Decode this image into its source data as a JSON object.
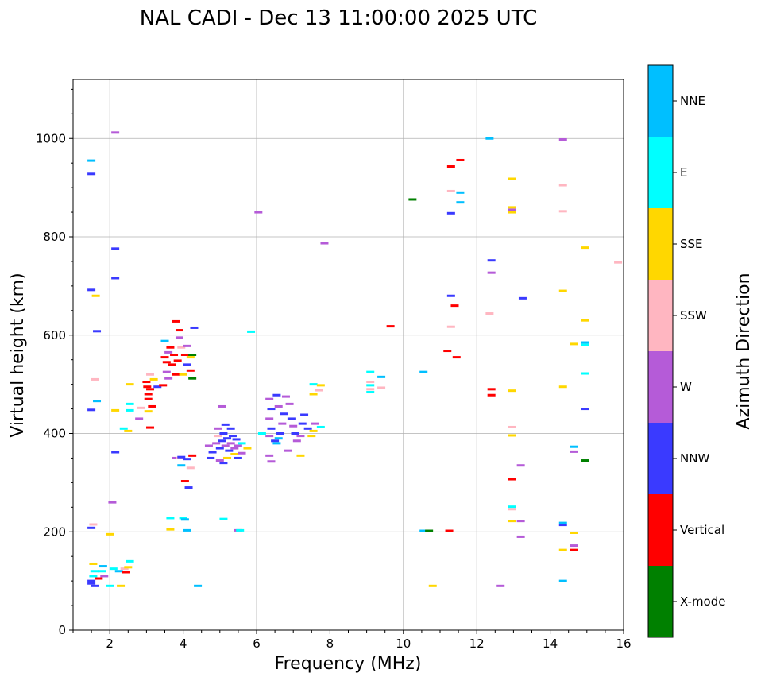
{
  "chart_data": {
    "type": "scatter",
    "title": "NAL CADI - Dec 13 11:00:00 2025 UTC",
    "xlabel": "Frequency (MHz)",
    "ylabel": "Virtual height (km)",
    "xlim": [
      1.0,
      16.0
    ],
    "ylim": [
      0,
      1120
    ],
    "xticks": [
      2,
      4,
      6,
      8,
      10,
      12,
      14,
      16
    ],
    "yticks": [
      0,
      200,
      400,
      600,
      800,
      1000
    ],
    "grid": true,
    "colorbar": {
      "label": "Azimuth Direction",
      "categories": [
        {
          "name": "X-mode",
          "color": "#008000"
        },
        {
          "name": "Vertical",
          "color": "#ff0000"
        },
        {
          "name": "NNW",
          "color": "#3a3aff"
        },
        {
          "name": "W",
          "color": "#b55bd8"
        },
        {
          "name": "SSW",
          "color": "#ffb6c1"
        },
        {
          "name": "SSE",
          "color": "#ffd700"
        },
        {
          "name": "E",
          "color": "#00ffff"
        },
        {
          "name": "NNE",
          "color": "#00bfff"
        }
      ]
    },
    "points": [
      {
        "f": 1.5,
        "h": 955,
        "c": "NNE"
      },
      {
        "f": 1.5,
        "h": 928,
        "c": "NNW"
      },
      {
        "f": 1.5,
        "h": 692,
        "c": "NNW"
      },
      {
        "f": 1.65,
        "h": 608,
        "c": "NNW"
      },
      {
        "f": 1.62,
        "h": 680,
        "c": "SSE"
      },
      {
        "f": 1.5,
        "h": 448,
        "c": "NNW"
      },
      {
        "f": 1.6,
        "h": 510,
        "c": "SSW"
      },
      {
        "f": 1.65,
        "h": 466,
        "c": "NNE"
      },
      {
        "f": 1.5,
        "h": 208,
        "c": "NNW"
      },
      {
        "f": 1.55,
        "h": 215,
        "c": "SSW"
      },
      {
        "f": 1.5,
        "h": 100,
        "c": "NNW"
      },
      {
        "f": 1.5,
        "h": 95,
        "c": "NNW"
      },
      {
        "f": 1.55,
        "h": 110,
        "c": "E"
      },
      {
        "f": 1.58,
        "h": 120,
        "c": "E"
      },
      {
        "f": 1.6,
        "h": 90,
        "c": "NNW"
      },
      {
        "f": 1.55,
        "h": 135,
        "c": "SSE"
      },
      {
        "f": 1.7,
        "h": 105,
        "c": "Vertical"
      },
      {
        "f": 1.78,
        "h": 120,
        "c": "E"
      },
      {
        "f": 1.85,
        "h": 110,
        "c": "W"
      },
      {
        "f": 1.82,
        "h": 130,
        "c": "NNE"
      },
      {
        "f": 2.1,
        "h": 125,
        "c": "E"
      },
      {
        "f": 2.25,
        "h": 120,
        "c": "NNE"
      },
      {
        "f": 2.4,
        "h": 125,
        "c": "SSW"
      },
      {
        "f": 2.5,
        "h": 128,
        "c": "SSE"
      },
      {
        "f": 2.45,
        "h": 118,
        "c": "Vertical"
      },
      {
        "f": 2.55,
        "h": 140,
        "c": "E"
      },
      {
        "f": 2.3,
        "h": 90,
        "c": "SSE"
      },
      {
        "f": 2.0,
        "h": 90,
        "c": "E"
      },
      {
        "f": 2.0,
        "h": 195,
        "c": "SSE"
      },
      {
        "f": 2.07,
        "h": 260,
        "c": "W"
      },
      {
        "f": 2.15,
        "h": 1012,
        "c": "W"
      },
      {
        "f": 2.15,
        "h": 776,
        "c": "NNW"
      },
      {
        "f": 2.15,
        "h": 716,
        "c": "NNW"
      },
      {
        "f": 2.15,
        "h": 362,
        "c": "NNW"
      },
      {
        "f": 2.15,
        "h": 447,
        "c": "SSE"
      },
      {
        "f": 2.38,
        "h": 410,
        "c": "E"
      },
      {
        "f": 2.5,
        "h": 405,
        "c": "SSE"
      },
      {
        "f": 2.55,
        "h": 460,
        "c": "E"
      },
      {
        "f": 2.55,
        "h": 447,
        "c": "E"
      },
      {
        "f": 2.55,
        "h": 500,
        "c": "SSE"
      },
      {
        "f": 2.8,
        "h": 430,
        "c": "W"
      },
      {
        "f": 2.85,
        "h": 452,
        "c": "SSW"
      },
      {
        "f": 3.0,
        "h": 505,
        "c": "Vertical"
      },
      {
        "f": 3.05,
        "h": 480,
        "c": "Vertical"
      },
      {
        "f": 3.05,
        "h": 470,
        "c": "Vertical"
      },
      {
        "f": 3.1,
        "h": 490,
        "c": "Vertical"
      },
      {
        "f": 3.02,
        "h": 495,
        "c": "Vertical"
      },
      {
        "f": 3.1,
        "h": 520,
        "c": "SSW"
      },
      {
        "f": 3.15,
        "h": 455,
        "c": "Vertical"
      },
      {
        "f": 3.05,
        "h": 445,
        "c": "SSE"
      },
      {
        "f": 3.2,
        "h": 510,
        "c": "SSE"
      },
      {
        "f": 3.1,
        "h": 412,
        "c": "Vertical"
      },
      {
        "f": 3.3,
        "h": 495,
        "c": "NNW"
      },
      {
        "f": 3.45,
        "h": 498,
        "c": "Vertical"
      },
      {
        "f": 3.5,
        "h": 555,
        "c": "Vertical"
      },
      {
        "f": 3.55,
        "h": 545,
        "c": "Vertical"
      },
      {
        "f": 3.6,
        "h": 565,
        "c": "W"
      },
      {
        "f": 3.65,
        "h": 575,
        "c": "Vertical"
      },
      {
        "f": 3.7,
        "h": 540,
        "c": "Vertical"
      },
      {
        "f": 3.75,
        "h": 560,
        "c": "Vertical"
      },
      {
        "f": 3.55,
        "h": 525,
        "c": "W"
      },
      {
        "f": 3.6,
        "h": 512,
        "c": "W"
      },
      {
        "f": 3.8,
        "h": 520,
        "c": "Vertical"
      },
      {
        "f": 3.85,
        "h": 548,
        "c": "Vertical"
      },
      {
        "f": 3.9,
        "h": 595,
        "c": "W"
      },
      {
        "f": 3.8,
        "h": 628,
        "c": "Vertical"
      },
      {
        "f": 3.9,
        "h": 610,
        "c": "Vertical"
      },
      {
        "f": 3.5,
        "h": 588,
        "c": "NNE"
      },
      {
        "f": 3.95,
        "h": 575,
        "c": "SSW"
      },
      {
        "f": 4.05,
        "h": 560,
        "c": "Vertical"
      },
      {
        "f": 4.1,
        "h": 578,
        "c": "W"
      },
      {
        "f": 4.2,
        "h": 555,
        "c": "SSE"
      },
      {
        "f": 4.25,
        "h": 560,
        "c": "X-mode"
      },
      {
        "f": 4.1,
        "h": 540,
        "c": "NNW"
      },
      {
        "f": 4.2,
        "h": 528,
        "c": "Vertical"
      },
      {
        "f": 4.25,
        "h": 512,
        "c": "X-mode"
      },
      {
        "f": 4.0,
        "h": 520,
        "c": "SSE"
      },
      {
        "f": 4.3,
        "h": 615,
        "c": "NNW"
      },
      {
        "f": 3.8,
        "h": 350,
        "c": "W"
      },
      {
        "f": 3.9,
        "h": 350,
        "c": "SSW"
      },
      {
        "f": 3.95,
        "h": 352,
        "c": "NNW"
      },
      {
        "f": 3.95,
        "h": 335,
        "c": "NNE"
      },
      {
        "f": 4.1,
        "h": 348,
        "c": "NNW"
      },
      {
        "f": 4.2,
        "h": 330,
        "c": "SSW"
      },
      {
        "f": 4.25,
        "h": 355,
        "c": "Vertical"
      },
      {
        "f": 4.05,
        "h": 303,
        "c": "Vertical"
      },
      {
        "f": 4.15,
        "h": 290,
        "c": "NNW"
      },
      {
        "f": 3.65,
        "h": 228,
        "c": "E"
      },
      {
        "f": 4.0,
        "h": 228,
        "c": "E"
      },
      {
        "f": 4.05,
        "h": 225,
        "c": "NNE"
      },
      {
        "f": 3.65,
        "h": 205,
        "c": "SSE"
      },
      {
        "f": 4.1,
        "h": 203,
        "c": "NNE"
      },
      {
        "f": 4.4,
        "h": 90,
        "c": "NNE"
      },
      {
        "f": 4.7,
        "h": 375,
        "c": "W"
      },
      {
        "f": 4.75,
        "h": 350,
        "c": "NNW"
      },
      {
        "f": 4.8,
        "h": 362,
        "c": "NNW"
      },
      {
        "f": 4.9,
        "h": 380,
        "c": "W"
      },
      {
        "f": 4.95,
        "h": 395,
        "c": "SSW"
      },
      {
        "f": 5.0,
        "h": 370,
        "c": "NNW"
      },
      {
        "f": 5.05,
        "h": 385,
        "c": "NNW"
      },
      {
        "f": 5.1,
        "h": 400,
        "c": "NNW"
      },
      {
        "f": 5.15,
        "h": 375,
        "c": "W"
      },
      {
        "f": 5.2,
        "h": 390,
        "c": "NNW"
      },
      {
        "f": 5.25,
        "h": 365,
        "c": "NNW"
      },
      {
        "f": 5.3,
        "h": 380,
        "c": "W"
      },
      {
        "f": 5.35,
        "h": 395,
        "c": "NNW"
      },
      {
        "f": 5.4,
        "h": 370,
        "c": "W"
      },
      {
        "f": 5.45,
        "h": 388,
        "c": "NNW"
      },
      {
        "f": 5.5,
        "h": 375,
        "c": "W"
      },
      {
        "f": 5.2,
        "h": 350,
        "c": "SSE"
      },
      {
        "f": 5.0,
        "h": 345,
        "c": "W"
      },
      {
        "f": 5.1,
        "h": 340,
        "c": "NNW"
      },
      {
        "f": 5.3,
        "h": 410,
        "c": "NNW"
      },
      {
        "f": 5.15,
        "h": 418,
        "c": "NNW"
      },
      {
        "f": 4.95,
        "h": 410,
        "c": "W"
      },
      {
        "f": 5.4,
        "h": 358,
        "c": "SSE"
      },
      {
        "f": 5.5,
        "h": 350,
        "c": "NNW"
      },
      {
        "f": 5.6,
        "h": 360,
        "c": "W"
      },
      {
        "f": 5.05,
        "h": 455,
        "c": "W"
      },
      {
        "f": 5.75,
        "h": 370,
        "c": "SSE"
      },
      {
        "f": 5.6,
        "h": 380,
        "c": "E"
      },
      {
        "f": 5.1,
        "h": 226,
        "c": "E"
      },
      {
        "f": 5.5,
        "h": 203,
        "c": "W"
      },
      {
        "f": 5.55,
        "h": 203,
        "c": "E"
      },
      {
        "f": 5.85,
        "h": 607,
        "c": "E"
      },
      {
        "f": 6.05,
        "h": 850,
        "c": "W"
      },
      {
        "f": 6.35,
        "h": 470,
        "c": "W"
      },
      {
        "f": 6.4,
        "h": 450,
        "c": "NNW"
      },
      {
        "f": 6.35,
        "h": 430,
        "c": "W"
      },
      {
        "f": 6.4,
        "h": 410,
        "c": "NNW"
      },
      {
        "f": 6.35,
        "h": 395,
        "c": "W"
      },
      {
        "f": 6.5,
        "h": 385,
        "c": "NNW"
      },
      {
        "f": 6.55,
        "h": 380,
        "c": "NNE"
      },
      {
        "f": 6.6,
        "h": 390,
        "c": "NNE"
      },
      {
        "f": 6.65,
        "h": 400,
        "c": "NNW"
      },
      {
        "f": 6.7,
        "h": 420,
        "c": "W"
      },
      {
        "f": 6.75,
        "h": 440,
        "c": "NNW"
      },
      {
        "f": 6.6,
        "h": 455,
        "c": "W"
      },
      {
        "f": 6.55,
        "h": 478,
        "c": "NNW"
      },
      {
        "f": 6.8,
        "h": 475,
        "c": "W"
      },
      {
        "f": 6.9,
        "h": 460,
        "c": "W"
      },
      {
        "f": 6.95,
        "h": 430,
        "c": "NNW"
      },
      {
        "f": 7.0,
        "h": 415,
        "c": "W"
      },
      {
        "f": 7.05,
        "h": 400,
        "c": "NNW"
      },
      {
        "f": 7.1,
        "h": 385,
        "c": "W"
      },
      {
        "f": 6.85,
        "h": 365,
        "c": "W"
      },
      {
        "f": 6.4,
        "h": 343,
        "c": "W"
      },
      {
        "f": 6.35,
        "h": 355,
        "c": "W"
      },
      {
        "f": 7.2,
        "h": 395,
        "c": "W"
      },
      {
        "f": 7.25,
        "h": 420,
        "c": "NNW"
      },
      {
        "f": 7.3,
        "h": 438,
        "c": "NNW"
      },
      {
        "f": 7.4,
        "h": 410,
        "c": "NNW"
      },
      {
        "f": 7.5,
        "h": 395,
        "c": "SSE"
      },
      {
        "f": 7.55,
        "h": 405,
        "c": "SSE"
      },
      {
        "f": 7.6,
        "h": 420,
        "c": "W"
      },
      {
        "f": 7.55,
        "h": 480,
        "c": "SSE"
      },
      {
        "f": 7.55,
        "h": 500,
        "c": "E"
      },
      {
        "f": 7.7,
        "h": 488,
        "c": "SSW"
      },
      {
        "f": 7.75,
        "h": 413,
        "c": "E"
      },
      {
        "f": 7.75,
        "h": 498,
        "c": "SSE"
      },
      {
        "f": 7.85,
        "h": 787,
        "c": "W"
      },
      {
        "f": 7.2,
        "h": 355,
        "c": "SSE"
      },
      {
        "f": 6.15,
        "h": 400,
        "c": "E"
      },
      {
        "f": 9.1,
        "h": 525,
        "c": "E"
      },
      {
        "f": 9.1,
        "h": 505,
        "c": "SSW"
      },
      {
        "f": 9.1,
        "h": 498,
        "c": "E"
      },
      {
        "f": 9.1,
        "h": 490,
        "c": "SSW"
      },
      {
        "f": 9.1,
        "h": 484,
        "c": "E"
      },
      {
        "f": 9.4,
        "h": 515,
        "c": "NNE"
      },
      {
        "f": 9.4,
        "h": 493,
        "c": "SSW"
      },
      {
        "f": 9.65,
        "h": 618,
        "c": "Vertical"
      },
      {
        "f": 10.25,
        "h": 876,
        "c": "X-mode"
      },
      {
        "f": 10.55,
        "h": 525,
        "c": "NNE"
      },
      {
        "f": 10.55,
        "h": 202,
        "c": "NNE"
      },
      {
        "f": 10.7,
        "h": 202,
        "c": "X-mode"
      },
      {
        "f": 10.8,
        "h": 90,
        "c": "SSE"
      },
      {
        "f": 11.25,
        "h": 202,
        "c": "Vertical"
      },
      {
        "f": 11.2,
        "h": 568,
        "c": "Vertical"
      },
      {
        "f": 11.3,
        "h": 680,
        "c": "NNW"
      },
      {
        "f": 11.3,
        "h": 617,
        "c": "SSW"
      },
      {
        "f": 11.4,
        "h": 660,
        "c": "Vertical"
      },
      {
        "f": 11.45,
        "h": 555,
        "c": "Vertical"
      },
      {
        "f": 11.3,
        "h": 943,
        "c": "Vertical"
      },
      {
        "f": 11.3,
        "h": 893,
        "c": "SSW"
      },
      {
        "f": 11.3,
        "h": 848,
        "c": "NNW"
      },
      {
        "f": 11.55,
        "h": 956,
        "c": "Vertical"
      },
      {
        "f": 11.55,
        "h": 890,
        "c": "NNE"
      },
      {
        "f": 11.55,
        "h": 870,
        "c": "NNE"
      },
      {
        "f": 12.35,
        "h": 1000,
        "c": "NNE"
      },
      {
        "f": 12.4,
        "h": 752,
        "c": "NNW"
      },
      {
        "f": 12.4,
        "h": 727,
        "c": "W"
      },
      {
        "f": 12.35,
        "h": 644,
        "c": "SSW"
      },
      {
        "f": 12.4,
        "h": 490,
        "c": "Vertical"
      },
      {
        "f": 12.4,
        "h": 478,
        "c": "Vertical"
      },
      {
        "f": 12.65,
        "h": 90,
        "c": "W"
      },
      {
        "f": 12.95,
        "h": 918,
        "c": "SSE"
      },
      {
        "f": 12.95,
        "h": 860,
        "c": "SSE"
      },
      {
        "f": 12.95,
        "h": 855,
        "c": "W"
      },
      {
        "f": 12.95,
        "h": 850,
        "c": "SSE"
      },
      {
        "f": 12.95,
        "h": 487,
        "c": "SSE"
      },
      {
        "f": 12.95,
        "h": 413,
        "c": "SSW"
      },
      {
        "f": 12.95,
        "h": 396,
        "c": "SSE"
      },
      {
        "f": 12.95,
        "h": 307,
        "c": "Vertical"
      },
      {
        "f": 12.95,
        "h": 251,
        "c": "E"
      },
      {
        "f": 12.95,
        "h": 246,
        "c": "SSW"
      },
      {
        "f": 12.95,
        "h": 222,
        "c": "SSE"
      },
      {
        "f": 13.2,
        "h": 222,
        "c": "W"
      },
      {
        "f": 13.2,
        "h": 335,
        "c": "W"
      },
      {
        "f": 13.2,
        "h": 190,
        "c": "W"
      },
      {
        "f": 13.25,
        "h": 675,
        "c": "NNW"
      },
      {
        "f": 14.35,
        "h": 998,
        "c": "W"
      },
      {
        "f": 14.35,
        "h": 905,
        "c": "SSW"
      },
      {
        "f": 14.35,
        "h": 852,
        "c": "SSW"
      },
      {
        "f": 14.35,
        "h": 690,
        "c": "SSE"
      },
      {
        "f": 14.35,
        "h": 495,
        "c": "SSE"
      },
      {
        "f": 14.35,
        "h": 218,
        "c": "NNE"
      },
      {
        "f": 14.35,
        "h": 214,
        "c": "NNW"
      },
      {
        "f": 14.35,
        "h": 163,
        "c": "SSE"
      },
      {
        "f": 14.35,
        "h": 100,
        "c": "NNE"
      },
      {
        "f": 14.65,
        "h": 582,
        "c": "SSE"
      },
      {
        "f": 14.65,
        "h": 373,
        "c": "NNE"
      },
      {
        "f": 14.65,
        "h": 363,
        "c": "W"
      },
      {
        "f": 14.65,
        "h": 198,
        "c": "SSE"
      },
      {
        "f": 14.65,
        "h": 172,
        "c": "W"
      },
      {
        "f": 14.65,
        "h": 163,
        "c": "Vertical"
      },
      {
        "f": 14.95,
        "h": 778,
        "c": "SSE"
      },
      {
        "f": 14.95,
        "h": 630,
        "c": "SSE"
      },
      {
        "f": 14.95,
        "h": 585,
        "c": "NNE"
      },
      {
        "f": 14.95,
        "h": 580,
        "c": "E"
      },
      {
        "f": 14.95,
        "h": 522,
        "c": "E"
      },
      {
        "f": 14.95,
        "h": 450,
        "c": "NNW"
      },
      {
        "f": 14.95,
        "h": 345,
        "c": "X-mode"
      },
      {
        "f": 15.85,
        "h": 748,
        "c": "SSW"
      }
    ]
  }
}
